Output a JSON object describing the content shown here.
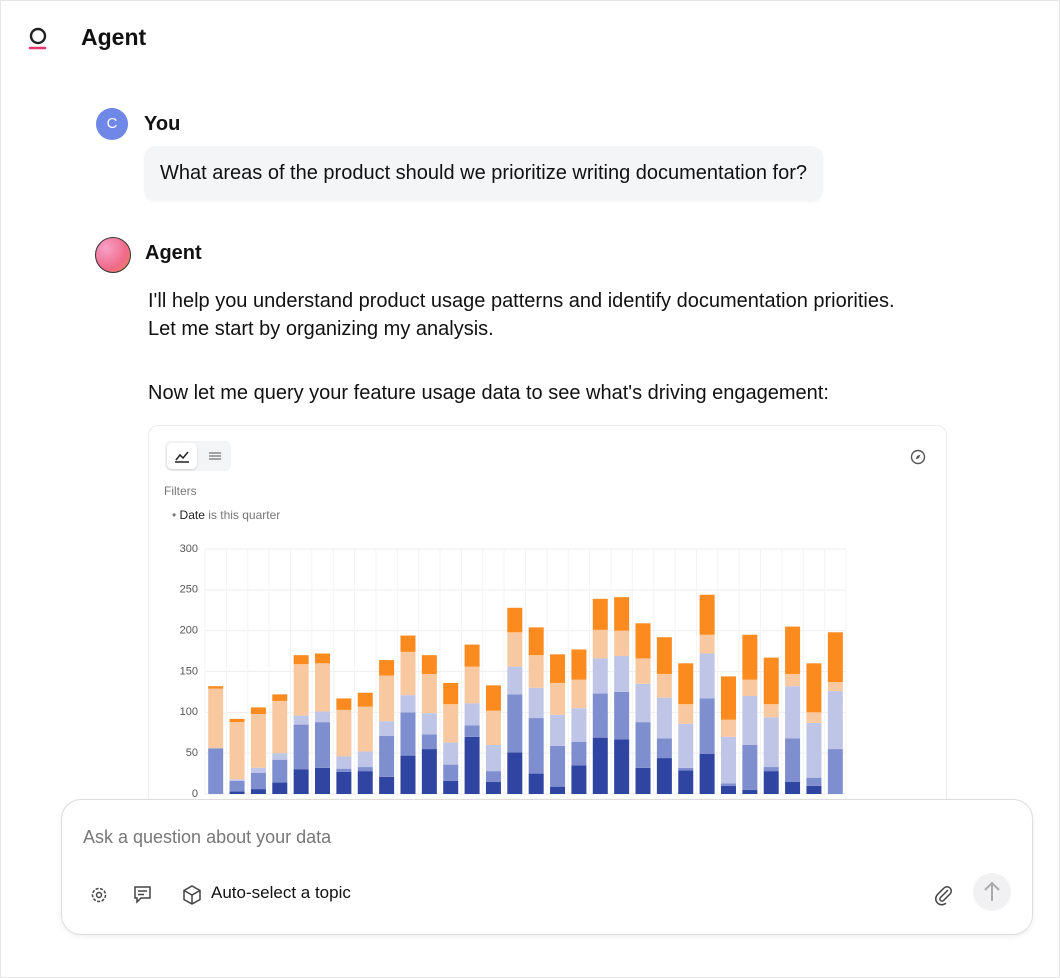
{
  "header": {
    "title": "Agent"
  },
  "messages": [
    {
      "avatar": "C",
      "author": "You",
      "text": "What areas of the product should we prioritize writing documentation for?"
    },
    {
      "author": "Agent",
      "paragraphs": [
        "I'll help you understand product usage patterns and identify documentation priorities. Let me start by organizing my analysis.",
        "Now let me query your feature usage data to see what's driving engagement:"
      ]
    }
  ],
  "filters": {
    "label": "Filters",
    "items": [
      {
        "field": "Date",
        "condition": "is this quarter"
      }
    ]
  },
  "chart_data": {
    "type": "stacked-bar",
    "categories": [
      null,
      null,
      null,
      null,
      null,
      null,
      null,
      null,
      null,
      null,
      null,
      null,
      null,
      null,
      null,
      null,
      null,
      null,
      null,
      null,
      null,
      null,
      null,
      null,
      null,
      null,
      null,
      null,
      null,
      null
    ],
    "series": [
      {
        "color": "#2f45a1",
        "values": [
          0,
          3,
          6,
          14,
          30,
          32,
          27,
          28,
          21,
          47,
          55,
          16,
          70,
          15,
          51,
          25,
          9,
          35,
          69,
          67,
          32,
          44,
          29,
          49,
          10,
          5,
          28,
          15,
          10,
          0
        ]
      },
      {
        "color": "#7f8ecf",
        "values": [
          56,
          13,
          20,
          28,
          55,
          56,
          4,
          5,
          50,
          53,
          18,
          20,
          14,
          13,
          71,
          68,
          50,
          29,
          54,
          58,
          56,
          24,
          3,
          68,
          3,
          55,
          5,
          53,
          10,
          55
        ]
      },
      {
        "color": "#bec5e7",
        "values": [
          0,
          2,
          6,
          8,
          11,
          13,
          15,
          19,
          18,
          21,
          26,
          27,
          27,
          32,
          34,
          37,
          38,
          41,
          43,
          44,
          47,
          50,
          54,
          55,
          57,
          60,
          61,
          64,
          67,
          71
        ]
      },
      {
        "color": "#f8c9a1",
        "values": [
          73,
          70,
          66,
          64,
          63,
          59,
          57,
          55,
          56,
          53,
          48,
          47,
          45,
          42,
          42,
          40,
          39,
          35,
          35,
          31,
          31,
          29,
          24,
          23,
          21,
          20,
          16,
          15,
          13,
          11
        ]
      },
      {
        "color": "#fb8a1f",
        "values": [
          3,
          4,
          8,
          8,
          11,
          12,
          14,
          17,
          19,
          20,
          23,
          26,
          27,
          31,
          30,
          34,
          35,
          37,
          38,
          41,
          43,
          45,
          50,
          49,
          53,
          55,
          57,
          58,
          60,
          61
        ]
      }
    ],
    "ylim": [
      0,
      300
    ],
    "yticks": [
      0,
      50,
      100,
      150,
      200,
      250,
      300
    ],
    "grid": true
  },
  "input": {
    "placeholder": "Ask a question about your data",
    "topic": "Auto-select a topic"
  }
}
